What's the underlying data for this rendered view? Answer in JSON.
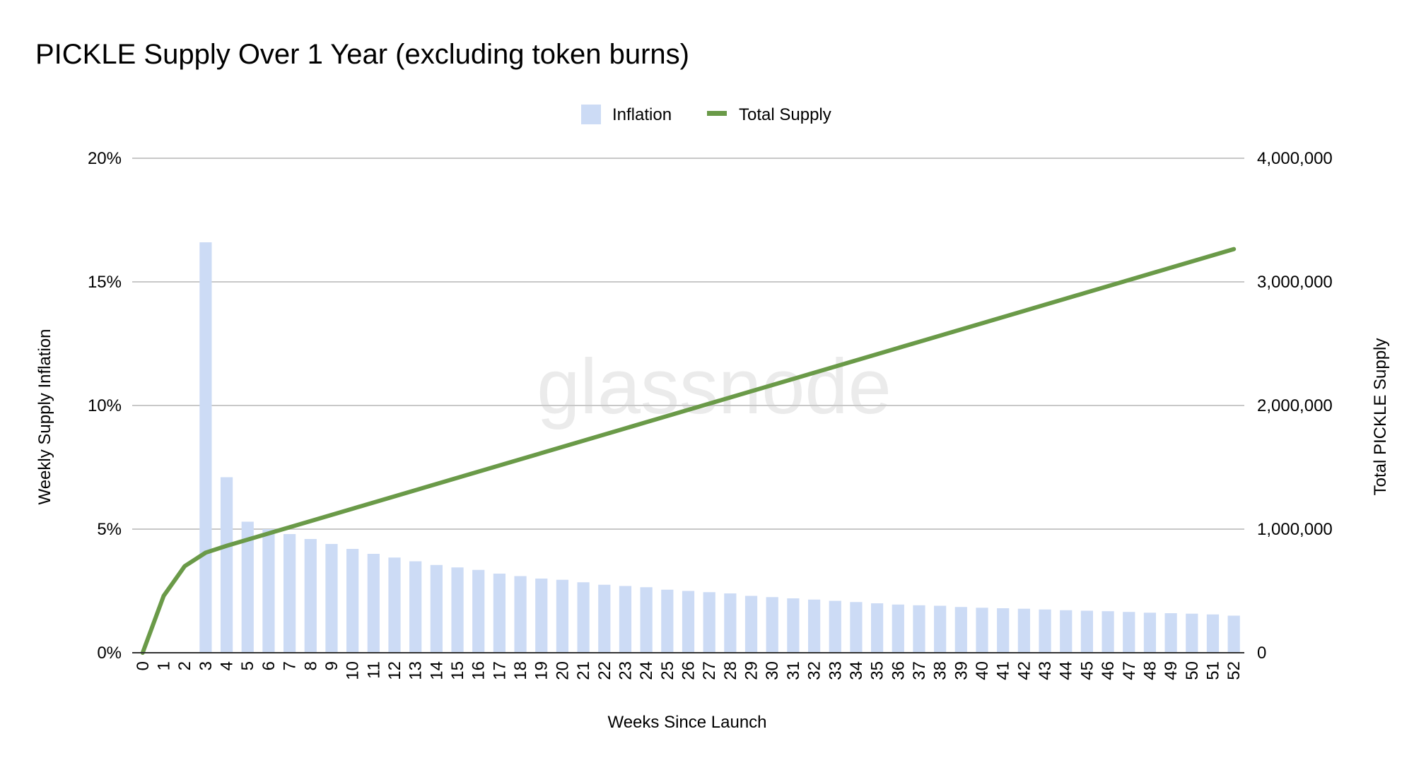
{
  "chart_data": {
    "type": "bar",
    "title": "PICKLE Supply Over 1 Year (excluding token burns)",
    "xlabel": "Weeks Since Launch",
    "ylabel_left": "Weekly Supply Inflation",
    "ylabel_right": "Total PICKLE Supply",
    "watermark": "glassnode",
    "categories": [
      "0",
      "1",
      "2",
      "3",
      "4",
      "5",
      "6",
      "7",
      "8",
      "9",
      "10",
      "11",
      "12",
      "13",
      "14",
      "15",
      "16",
      "17",
      "18",
      "19",
      "20",
      "21",
      "22",
      "23",
      "24",
      "25",
      "26",
      "27",
      "28",
      "29",
      "30",
      "31",
      "32",
      "33",
      "34",
      "35",
      "36",
      "37",
      "38",
      "39",
      "40",
      "41",
      "42",
      "43",
      "44",
      "45",
      "46",
      "47",
      "48",
      "49",
      "50",
      "51",
      "52"
    ],
    "ylim_left": [
      0,
      20
    ],
    "ylim_right": [
      0,
      4000000
    ],
    "left_ticks": [
      "0%",
      "5%",
      "10%",
      "15%",
      "20%"
    ],
    "right_ticks": [
      "0",
      "1,000,000",
      "2,000,000",
      "3,000,000",
      "4,000,000"
    ],
    "grid": true,
    "legend_position": "top",
    "colors": {
      "inflation": "#ccdbf5",
      "total_supply": "#6a9a48",
      "gridline": "#c8c8c8"
    },
    "series": [
      {
        "name": "Inflation",
        "kind": "bar",
        "axis": "left",
        "unit": "%",
        "values": [
          0,
          0,
          0,
          16.6,
          7.1,
          5.3,
          5.0,
          4.8,
          4.6,
          4.4,
          4.2,
          4.0,
          3.85,
          3.7,
          3.55,
          3.45,
          3.35,
          3.2,
          3.1,
          3.0,
          2.95,
          2.85,
          2.75,
          2.7,
          2.65,
          2.55,
          2.5,
          2.45,
          2.4,
          2.3,
          2.25,
          2.2,
          2.15,
          2.1,
          2.05,
          2.0,
          1.95,
          1.92,
          1.9,
          1.85,
          1.82,
          1.8,
          1.78,
          1.75,
          1.72,
          1.7,
          1.68,
          1.65,
          1.62,
          1.6,
          1.58,
          1.55,
          1.5
        ]
      },
      {
        "name": "Total Supply",
        "kind": "line",
        "axis": "right",
        "values": [
          0,
          460000,
          700000,
          810000,
          865000,
          915000,
          965000,
          1015000,
          1065000,
          1115000,
          1165000,
          1215000,
          1265000,
          1315000,
          1365000,
          1415000,
          1465000,
          1515000,
          1565000,
          1615000,
          1665000,
          1715000,
          1765000,
          1815000,
          1865000,
          1915000,
          1965000,
          2015000,
          2065000,
          2115000,
          2165000,
          2215000,
          2265000,
          2315000,
          2365000,
          2415000,
          2465000,
          2515000,
          2565000,
          2615000,
          2665000,
          2715000,
          2765000,
          2815000,
          2865000,
          2915000,
          2965000,
          3015000,
          3065000,
          3115000,
          3165000,
          3215000,
          3265000
        ]
      }
    ]
  }
}
